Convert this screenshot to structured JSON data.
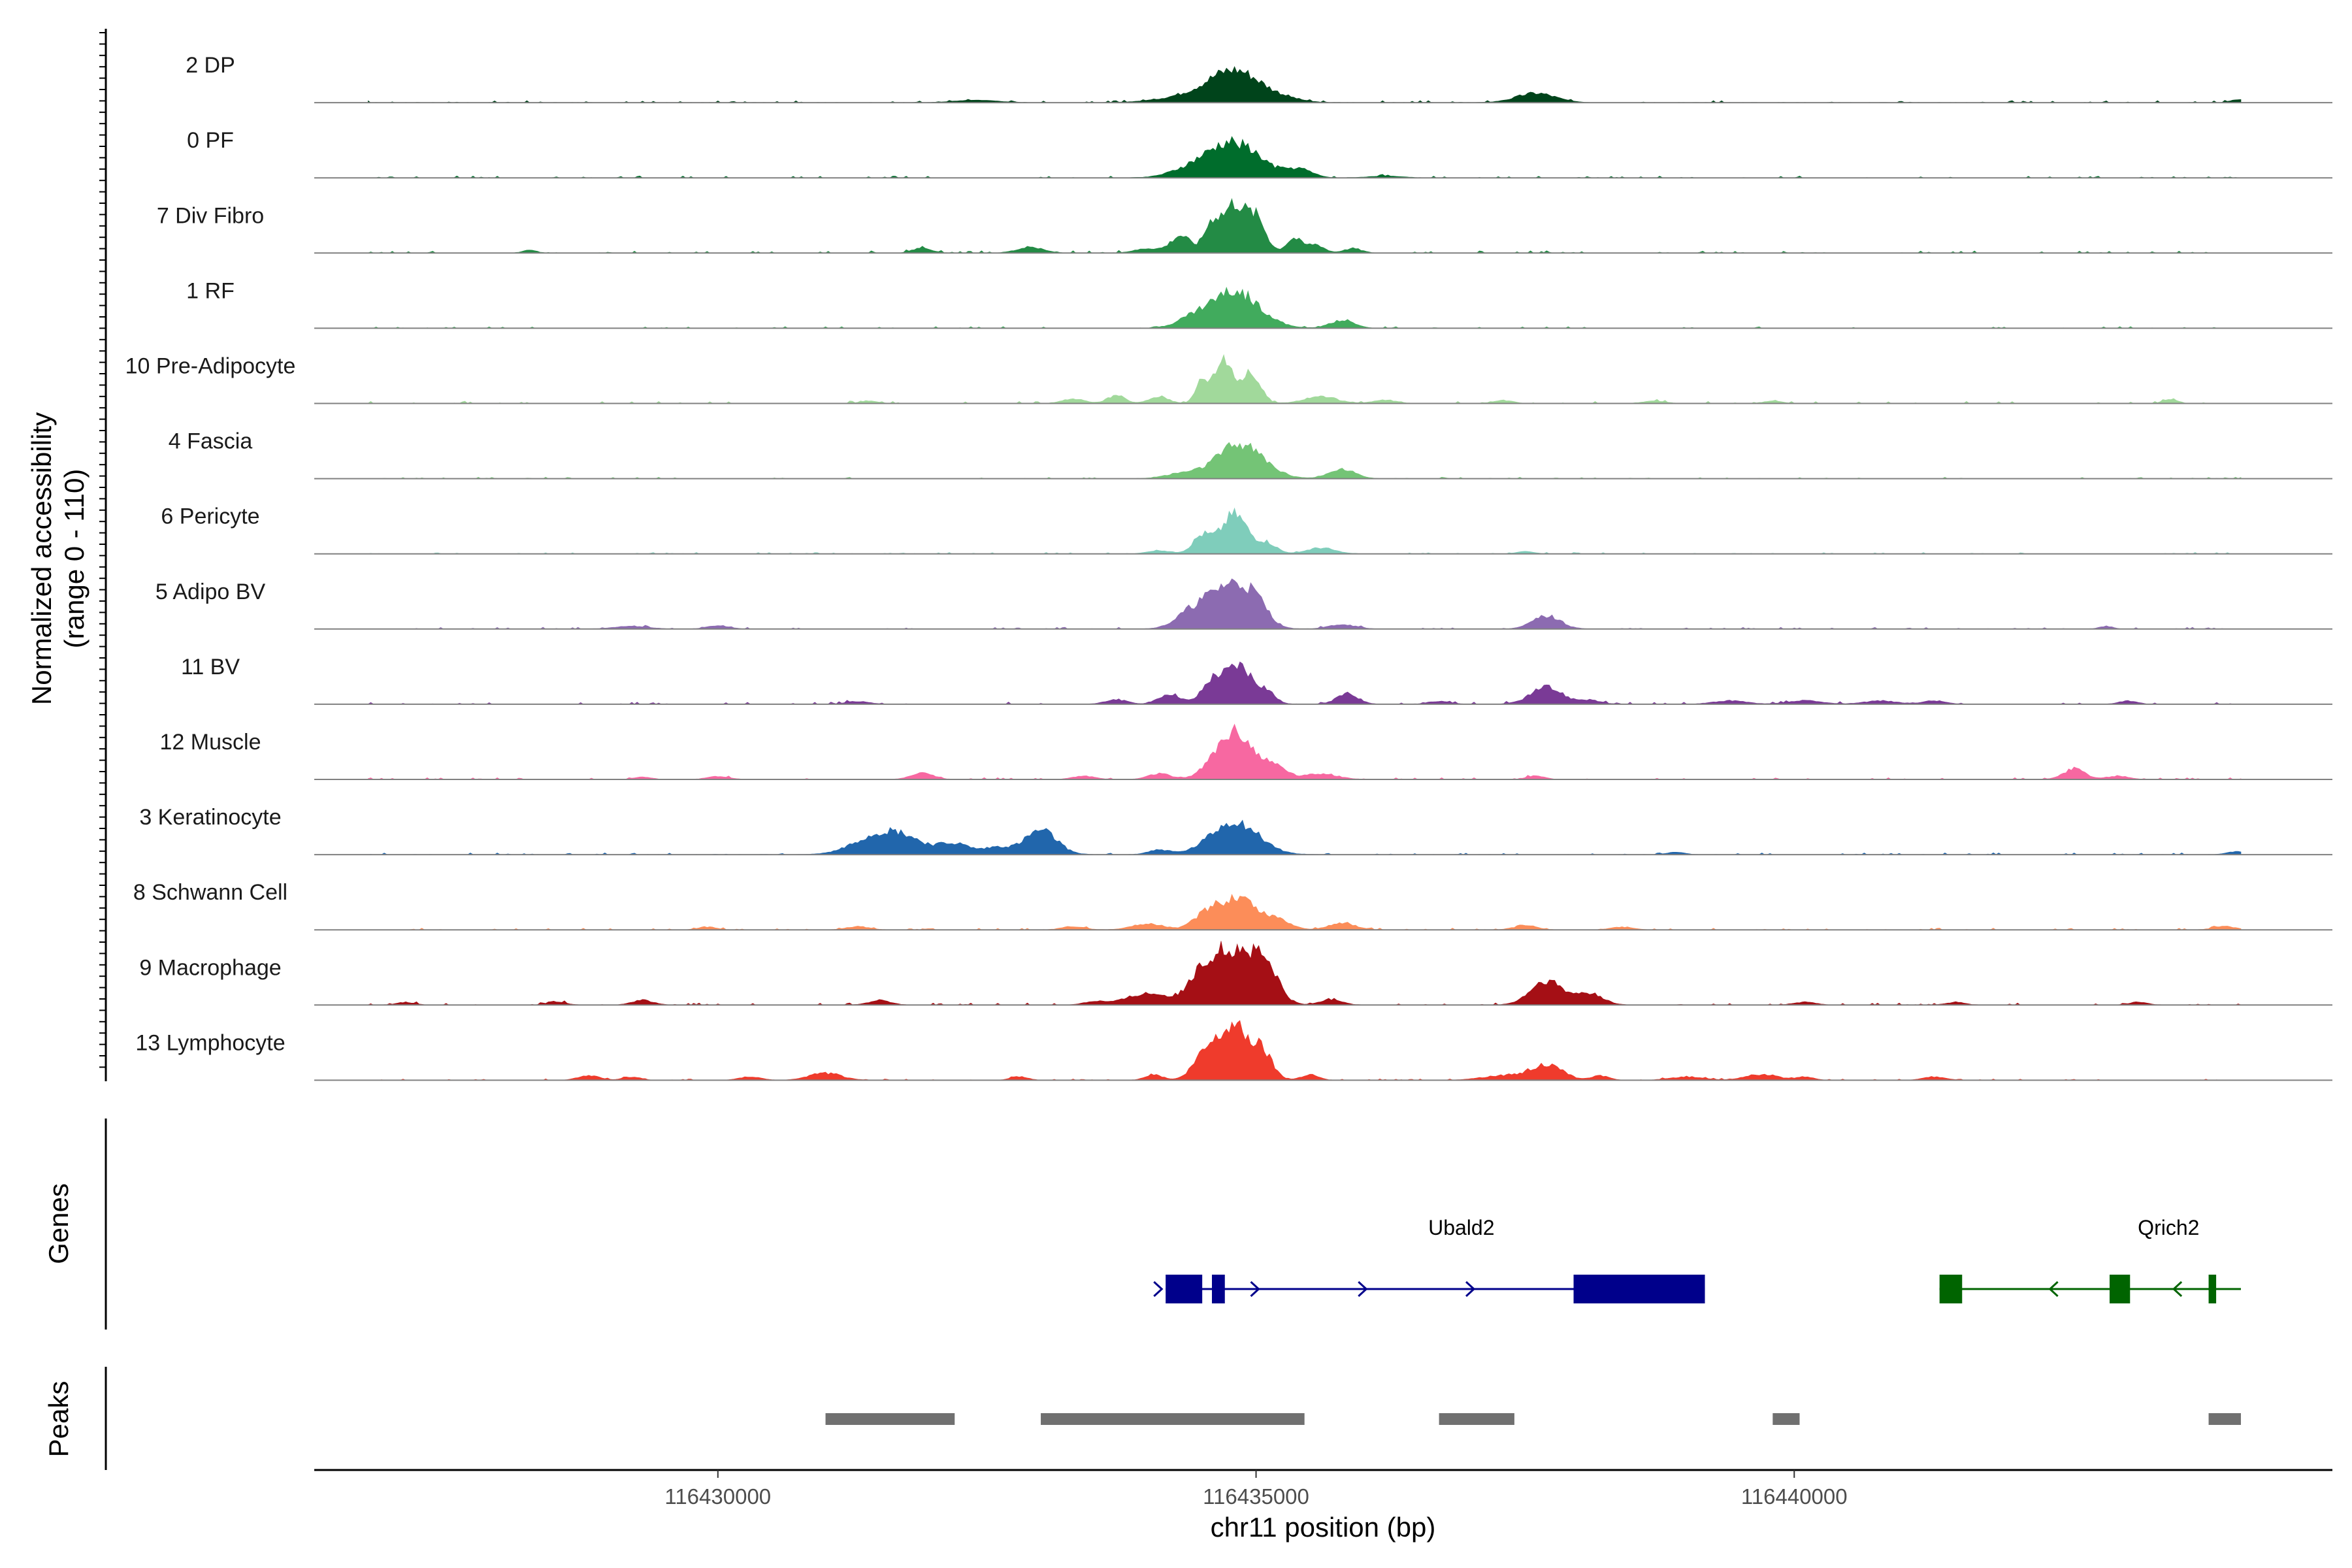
{
  "chart_data": {
    "type": "area",
    "title": "",
    "chromosome": "chr11",
    "xlabel": "chr11 position (bp)",
    "ylabel_line1": "Normalized accessibility",
    "ylabel_line2": "(range 0 - 110)",
    "ylim": [
      0,
      110
    ],
    "xlim": [
      116426250,
      116445000
    ],
    "xticks": [
      {
        "value": 116430000,
        "label": "116430000"
      },
      {
        "value": 116435000,
        "label": "116435000"
      },
      {
        "value": 116440000,
        "label": "116440000"
      }
    ],
    "baseline_color": "#808080",
    "tracks": [
      {
        "name": "2 DP",
        "color": "#00441b",
        "peaks": [
          [
            116432400,
            4,
            200
          ],
          [
            116434300,
            8,
            250
          ],
          [
            116434800,
            55,
            250
          ],
          [
            116435300,
            4,
            150
          ],
          [
            116437600,
            16,
            180
          ],
          [
            116444150,
            6,
            80
          ]
        ],
        "noise": 2.2
      },
      {
        "name": "0 PF",
        "color": "#006d2c",
        "peaks": [
          [
            116434400,
            12,
            200
          ],
          [
            116434800,
            58,
            240
          ],
          [
            116435400,
            14,
            120
          ],
          [
            116436200,
            3,
            150
          ]
        ],
        "noise": 2.0
      },
      {
        "name": "7 Div Fibro",
        "color": "#238b45",
        "peaks": [
          [
            116428250,
            5,
            60
          ],
          [
            116431900,
            10,
            80
          ],
          [
            116432900,
            10,
            120
          ],
          [
            116434000,
            8,
            120
          ],
          [
            116434300,
            30,
            90
          ],
          [
            116434600,
            55,
            80
          ],
          [
            116434800,
            80,
            90
          ],
          [
            116435000,
            60,
            90
          ],
          [
            116435350,
            25,
            70
          ],
          [
            116435550,
            15,
            80
          ],
          [
            116435900,
            8,
            80
          ]
        ],
        "noise": 2.5
      },
      {
        "name": "1 RF",
        "color": "#41ab5d",
        "peaks": [
          [
            116434400,
            12,
            150
          ],
          [
            116434800,
            62,
            230
          ],
          [
            116435800,
            14,
            110
          ]
        ],
        "noise": 1.8
      },
      {
        "name": "10 Pre-Adipocyte",
        "color": "#a1d99b",
        "peaks": [
          [
            116431400,
            4,
            80
          ],
          [
            116433300,
            8,
            100
          ],
          [
            116433700,
            14,
            80
          ],
          [
            116434100,
            12,
            90
          ],
          [
            116434500,
            40,
            60
          ],
          [
            116434700,
            78,
            80
          ],
          [
            116434950,
            50,
            90
          ],
          [
            116435600,
            12,
            150
          ],
          [
            116436200,
            6,
            100
          ],
          [
            116437300,
            5,
            90
          ],
          [
            116438700,
            4,
            100
          ],
          [
            116439800,
            4,
            80
          ],
          [
            116443500,
            8,
            60
          ]
        ],
        "noise": 2.4
      },
      {
        "name": "4 Fascia",
        "color": "#74c476",
        "peaks": [
          [
            116434300,
            8,
            150
          ],
          [
            116434850,
            58,
            220
          ],
          [
            116435800,
            16,
            120
          ]
        ],
        "noise": 1.6
      },
      {
        "name": "6 Pericyte",
        "color": "#7fcdbb",
        "peaks": [
          [
            116434100,
            6,
            100
          ],
          [
            116434500,
            30,
            90
          ],
          [
            116434800,
            66,
            120
          ],
          [
            116435100,
            18,
            90
          ],
          [
            116435600,
            10,
            130
          ],
          [
            116437500,
            4,
            80
          ]
        ],
        "noise": 1.5
      },
      {
        "name": "5 Adipo BV",
        "color": "#8c6bb1",
        "peaks": [
          [
            116429200,
            5,
            150
          ],
          [
            116430000,
            6,
            100
          ],
          [
            116434400,
            25,
            150
          ],
          [
            116434750,
            72,
            190
          ],
          [
            116435000,
            30,
            120
          ],
          [
            116435800,
            8,
            120
          ],
          [
            116437700,
            22,
            130
          ],
          [
            116442900,
            5,
            60
          ]
        ],
        "noise": 2.0
      },
      {
        "name": "11 BV",
        "color": "#7a3a96",
        "peaks": [
          [
            116431300,
            5,
            100
          ],
          [
            116433700,
            8,
            100
          ],
          [
            116434200,
            18,
            100
          ],
          [
            116434600,
            40,
            100
          ],
          [
            116434850,
            65,
            120
          ],
          [
            116435100,
            20,
            80
          ],
          [
            116435850,
            18,
            100
          ],
          [
            116436700,
            5,
            100
          ],
          [
            116437700,
            28,
            150
          ],
          [
            116438100,
            7,
            100
          ],
          [
            116439400,
            6,
            150
          ],
          [
            116440100,
            6,
            150
          ],
          [
            116440800,
            6,
            150
          ],
          [
            116441300,
            6,
            100
          ],
          [
            116443100,
            6,
            80
          ]
        ],
        "noise": 2.4
      },
      {
        "name": "12 Muscle",
        "color": "#f768a1",
        "peaks": [
          [
            116429300,
            4,
            80
          ],
          [
            116430000,
            5,
            100
          ],
          [
            116431900,
            12,
            100
          ],
          [
            116433400,
            6,
            100
          ],
          [
            116434100,
            10,
            100
          ],
          [
            116434800,
            82,
            180
          ],
          [
            116435200,
            18,
            100
          ],
          [
            116435600,
            10,
            150
          ],
          [
            116437600,
            6,
            80
          ],
          [
            116442600,
            18,
            100
          ],
          [
            116443000,
            6,
            100
          ]
        ],
        "noise": 2.0
      },
      {
        "name": "3 Keratinocyte",
        "color": "#2166ac",
        "peaks": [
          [
            116431400,
            22,
            200
          ],
          [
            116431700,
            30,
            200
          ],
          [
            116432200,
            18,
            150
          ],
          [
            116432600,
            12,
            120
          ],
          [
            116433000,
            40,
            150
          ],
          [
            116434100,
            8,
            100
          ],
          [
            116434800,
            55,
            220
          ],
          [
            116438900,
            4,
            80
          ],
          [
            116444100,
            5,
            80
          ]
        ],
        "noise": 2.0
      },
      {
        "name": "8 Schwann Cell",
        "color": "#fc8d59",
        "peaks": [
          [
            116429900,
            5,
            80
          ],
          [
            116431300,
            6,
            100
          ],
          [
            116433300,
            6,
            100
          ],
          [
            116434000,
            10,
            150
          ],
          [
            116434550,
            30,
            120
          ],
          [
            116434850,
            55,
            150
          ],
          [
            116435200,
            18,
            120
          ],
          [
            116435800,
            12,
            120
          ],
          [
            116437500,
            8,
            100
          ],
          [
            116438400,
            5,
            100
          ],
          [
            116444000,
            6,
            100
          ]
        ],
        "noise": 1.8
      },
      {
        "name": "9 Macrophage",
        "color": "#a50f15",
        "peaks": [
          [
            116427100,
            5,
            80
          ],
          [
            116428500,
            6,
            80
          ],
          [
            116429300,
            8,
            100
          ],
          [
            116431500,
            8,
            100
          ],
          [
            116433500,
            6,
            100
          ],
          [
            116434000,
            20,
            200
          ],
          [
            116434550,
            60,
            150
          ],
          [
            116434850,
            80,
            180
          ],
          [
            116435100,
            45,
            120
          ],
          [
            116435700,
            10,
            100
          ],
          [
            116437700,
            40,
            150
          ],
          [
            116438100,
            20,
            120
          ],
          [
            116440100,
            5,
            100
          ],
          [
            116441500,
            5,
            80
          ],
          [
            116443200,
            5,
            80
          ]
        ],
        "noise": 2.2
      },
      {
        "name": "13 Lymphocyte",
        "color": "#ef3b2c",
        "peaks": [
          [
            116428800,
            8,
            100
          ],
          [
            116429200,
            6,
            80
          ],
          [
            116430300,
            6,
            100
          ],
          [
            116431000,
            12,
            150
          ],
          [
            116432800,
            6,
            80
          ],
          [
            116434050,
            10,
            80
          ],
          [
            116434550,
            50,
            120
          ],
          [
            116434800,
            88,
            120
          ],
          [
            116435050,
            50,
            100
          ],
          [
            116435500,
            10,
            80
          ],
          [
            116437300,
            8,
            200
          ],
          [
            116437700,
            25,
            150
          ],
          [
            116438200,
            8,
            80
          ],
          [
            116439000,
            6,
            150
          ],
          [
            116439700,
            10,
            150
          ],
          [
            116440100,
            6,
            80
          ],
          [
            116441300,
            6,
            100
          ]
        ],
        "noise": 1.5
      }
    ],
    "genes_panel_label": "Genes",
    "genes": [
      {
        "name": "Ubald2",
        "strand": "+",
        "color": "#00008b",
        "start": 116434160,
        "end": 116439170,
        "exons": [
          [
            116434160,
            116434500
          ],
          [
            116434590,
            116434710
          ],
          [
            116437950,
            116439170
          ]
        ],
        "arrows": [
          116434100,
          116435000,
          116436000,
          116437000
        ]
      },
      {
        "name": "Qrich2",
        "strand": "-",
        "color": "#006400",
        "start": 116441350,
        "end": 116444150,
        "exons": [
          [
            116441350,
            116441560
          ],
          [
            116442930,
            116443120
          ],
          [
            116443850,
            116443920
          ]
        ],
        "arrows": [
          116442400,
          116443550
        ]
      }
    ],
    "peaks_panel_label": "Peaks",
    "peaks_color": "#707070",
    "peak_regions": [
      [
        116431000,
        116432200
      ],
      [
        116433000,
        116435450
      ],
      [
        116436700,
        116437400
      ],
      [
        116439800,
        116440050
      ],
      [
        116443850,
        116444150
      ]
    ]
  }
}
